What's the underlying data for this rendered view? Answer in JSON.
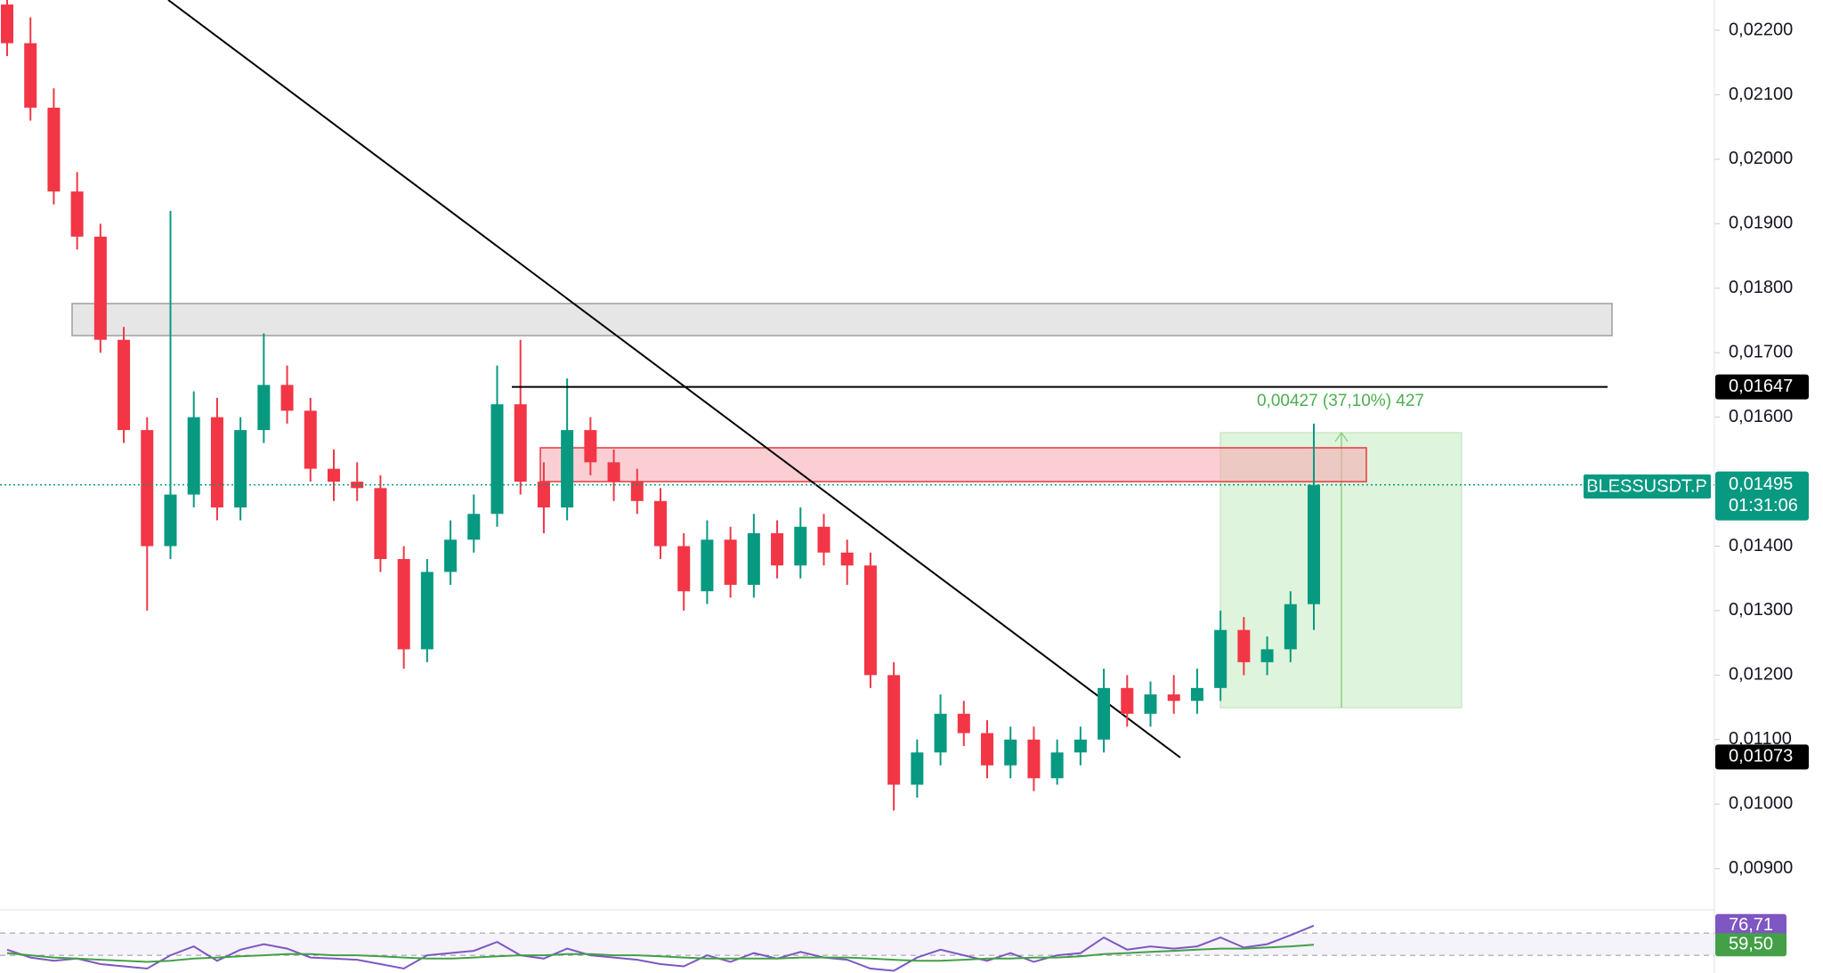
{
  "chart_data": {
    "type": "candlestick",
    "symbol": "BLESSUSDT.P",
    "up_color": "#089981",
    "down_color": "#f23645",
    "open": [
      0.0224,
      0.0218,
      0.0208,
      0.0195,
      0.0188,
      0.0172,
      0.0158,
      0.014,
      0.0148,
      0.016,
      0.0146,
      0.0158,
      0.0165,
      0.0161,
      0.0152,
      0.015,
      0.0149,
      0.0138,
      0.0124,
      0.0136,
      0.0141,
      0.0145,
      0.0162,
      0.015,
      0.0146,
      0.0158,
      0.0153,
      0.015,
      0.0147,
      0.014,
      0.0133,
      0.0141,
      0.0134,
      0.0142,
      0.0137,
      0.0143,
      0.0139,
      0.0137,
      0.012,
      0.0103,
      0.0108,
      0.0114,
      0.0111,
      0.0106,
      0.011,
      0.0104,
      0.0108,
      0.011,
      0.0118,
      0.0114,
      0.0117,
      0.0116,
      0.0118,
      0.0127,
      0.0122,
      0.0124,
      0.0131
    ],
    "high": [
      0.0225,
      0.0222,
      0.0211,
      0.0198,
      0.019,
      0.0174,
      0.016,
      0.0192,
      0.0164,
      0.0163,
      0.016,
      0.0173,
      0.0168,
      0.0163,
      0.0155,
      0.0153,
      0.0151,
      0.014,
      0.0138,
      0.0144,
      0.0148,
      0.0168,
      0.0172,
      0.0153,
      0.0166,
      0.016,
      0.0155,
      0.0152,
      0.0149,
      0.0142,
      0.0144,
      0.0143,
      0.0145,
      0.0144,
      0.0146,
      0.0145,
      0.0141,
      0.0139,
      0.0122,
      0.011,
      0.0117,
      0.0116,
      0.0113,
      0.0112,
      0.0112,
      0.011,
      0.0112,
      0.0121,
      0.012,
      0.0119,
      0.012,
      0.0121,
      0.013,
      0.0129,
      0.0126,
      0.0133,
      0.0159
    ],
    "low": [
      0.0216,
      0.0206,
      0.0193,
      0.0186,
      0.017,
      0.0156,
      0.013,
      0.0138,
      0.0146,
      0.0144,
      0.0144,
      0.0156,
      0.0159,
      0.015,
      0.0147,
      0.0147,
      0.0136,
      0.0121,
      0.0122,
      0.0134,
      0.0139,
      0.0143,
      0.0148,
      0.0142,
      0.0144,
      0.0151,
      0.0147,
      0.0145,
      0.0138,
      0.013,
      0.0131,
      0.0132,
      0.0132,
      0.0135,
      0.0135,
      0.0137,
      0.0134,
      0.0118,
      0.0099,
      0.0101,
      0.0106,
      0.0109,
      0.0104,
      0.0104,
      0.0102,
      0.0103,
      0.0106,
      0.0108,
      0.0112,
      0.0112,
      0.0114,
      0.0114,
      0.0116,
      0.012,
      0.012,
      0.0122,
      0.0127
    ],
    "close": [
      0.0218,
      0.0208,
      0.0195,
      0.0188,
      0.0172,
      0.0158,
      0.014,
      0.0148,
      0.016,
      0.0146,
      0.0158,
      0.0165,
      0.0161,
      0.0152,
      0.015,
      0.0149,
      0.0138,
      0.0124,
      0.0136,
      0.0141,
      0.0145,
      0.0162,
      0.015,
      0.0146,
      0.0158,
      0.0153,
      0.015,
      0.0147,
      0.014,
      0.0133,
      0.0141,
      0.0134,
      0.0142,
      0.0137,
      0.0143,
      0.0139,
      0.0137,
      0.012,
      0.0103,
      0.0108,
      0.0114,
      0.0111,
      0.0106,
      0.011,
      0.0104,
      0.0108,
      0.011,
      0.0118,
      0.0114,
      0.0117,
      0.0116,
      0.0118,
      0.0127,
      0.0122,
      0.0124,
      0.0131,
      0.01495
    ],
    "ylim": [
      0.00836,
      0.02247
    ],
    "yticks": [
      {
        "value": 0.009,
        "label": "0,00900"
      },
      {
        "value": 0.01,
        "label": "0,01000"
      },
      {
        "value": 0.011,
        "label": "0,01100"
      },
      {
        "value": 0.012,
        "label": "0,01200"
      },
      {
        "value": 0.013,
        "label": "0,01300"
      },
      {
        "value": 0.014,
        "label": "0,01400"
      },
      {
        "value": 0.015,
        "label": "0,01500"
      },
      {
        "value": 0.016,
        "label": "0,01600"
      },
      {
        "value": 0.017,
        "label": "0,01700"
      },
      {
        "value": 0.018,
        "label": "0,01800"
      },
      {
        "value": 0.019,
        "label": "0,01900"
      },
      {
        "value": 0.02,
        "label": "0,02000"
      },
      {
        "value": 0.021,
        "label": "0,02100"
      },
      {
        "value": 0.022,
        "label": "0,02200"
      }
    ],
    "level_labels": [
      {
        "value": 0.01647,
        "label": "0,01647",
        "color": "#000000"
      },
      {
        "value": 0.01073,
        "label": "0,01073",
        "color": "#000000"
      }
    ],
    "last_price": {
      "value": 0.01495,
      "label": "0,01495",
      "countdown": "01:31:06",
      "color": "#089981"
    },
    "measurement": "0,00427 (37,10%) 427",
    "rsi": {
      "ylim": [
        34,
        91
      ],
      "levels": [
        70,
        50
      ],
      "series": [
        {
          "color": "#7e57c2",
          "values": [
            55,
            48,
            45,
            47,
            42,
            40,
            38,
            50,
            58,
            45,
            55,
            60,
            56,
            48,
            47,
            46,
            42,
            38,
            50,
            52,
            54,
            62,
            50,
            47,
            56,
            50,
            48,
            46,
            42,
            40,
            50,
            44,
            52,
            47,
            53,
            48,
            46,
            38,
            36,
            48,
            55,
            50,
            45,
            52,
            44,
            50,
            52,
            66,
            55,
            58,
            56,
            58,
            66,
            57,
            60,
            68,
            76.71
          ],
          "last_label": "76,71"
        },
        {
          "color": "#43a047",
          "values": [
            52,
            50,
            48,
            47,
            46,
            45,
            44,
            45,
            47,
            48,
            49,
            50,
            51,
            51,
            50,
            50,
            49,
            48,
            47,
            47,
            48,
            49,
            50,
            50,
            51,
            51,
            50,
            50,
            49,
            48,
            47,
            47,
            47,
            47,
            48,
            48,
            48,
            47,
            46,
            45,
            45,
            46,
            47,
            47,
            48,
            48,
            49,
            51,
            52,
            53,
            54,
            55,
            56,
            56,
            57,
            58,
            59.5
          ],
          "last_label": "59,50"
        }
      ]
    }
  }
}
